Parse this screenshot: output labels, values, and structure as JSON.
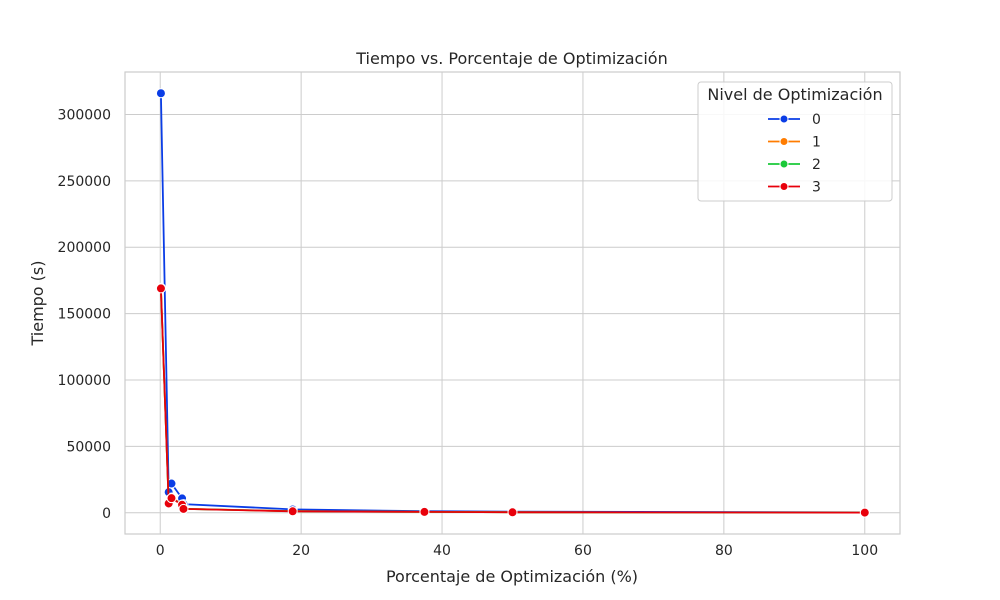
{
  "chart_data": {
    "type": "line",
    "title": "Tiempo vs. Porcentaje de Optimización",
    "xlabel": "Porcentaje de Optimización (%)",
    "ylabel": "Tiempo (s)",
    "xlim": [
      -5,
      105
    ],
    "ylim": [
      -16000,
      332000
    ],
    "xticks": [
      0,
      20,
      40,
      60,
      80,
      100
    ],
    "yticks": [
      0,
      50000,
      100000,
      150000,
      200000,
      250000,
      300000
    ],
    "grid": true,
    "legend": {
      "title": "Nivel de Optimización",
      "placement": "top-right"
    },
    "series": [
      {
        "name": "0",
        "color": "#0a3de6",
        "x": [
          0.1,
          1.2,
          1.6,
          3.1,
          3.3,
          18.8,
          37.5,
          50,
          100
        ],
        "y": [
          316000,
          15500,
          22000,
          10800,
          6500,
          2500,
          1200,
          800,
          300
        ]
      },
      {
        "name": "1",
        "color": "#ff7c00",
        "x": [
          0.1,
          1.2,
          1.6,
          3.1,
          3.3,
          18.8,
          37.5,
          50,
          100
        ],
        "y": [
          169500,
          7200,
          11500,
          6200,
          3000,
          1200,
          700,
          400,
          150
        ]
      },
      {
        "name": "2",
        "color": "#1ac938",
        "x": [
          0.1,
          1.2,
          1.6,
          3.1,
          3.3,
          18.8,
          37.5,
          50,
          100
        ],
        "y": [
          169000,
          7000,
          11200,
          6000,
          2900,
          1150,
          650,
          380,
          140
        ]
      },
      {
        "name": "3",
        "color": "#e8000b",
        "x": [
          0.1,
          1.2,
          1.6,
          3.1,
          3.3,
          18.8,
          37.5,
          50,
          100
        ],
        "y": [
          169000,
          7000,
          11000,
          6000,
          2900,
          1100,
          650,
          350,
          130
        ]
      }
    ]
  }
}
